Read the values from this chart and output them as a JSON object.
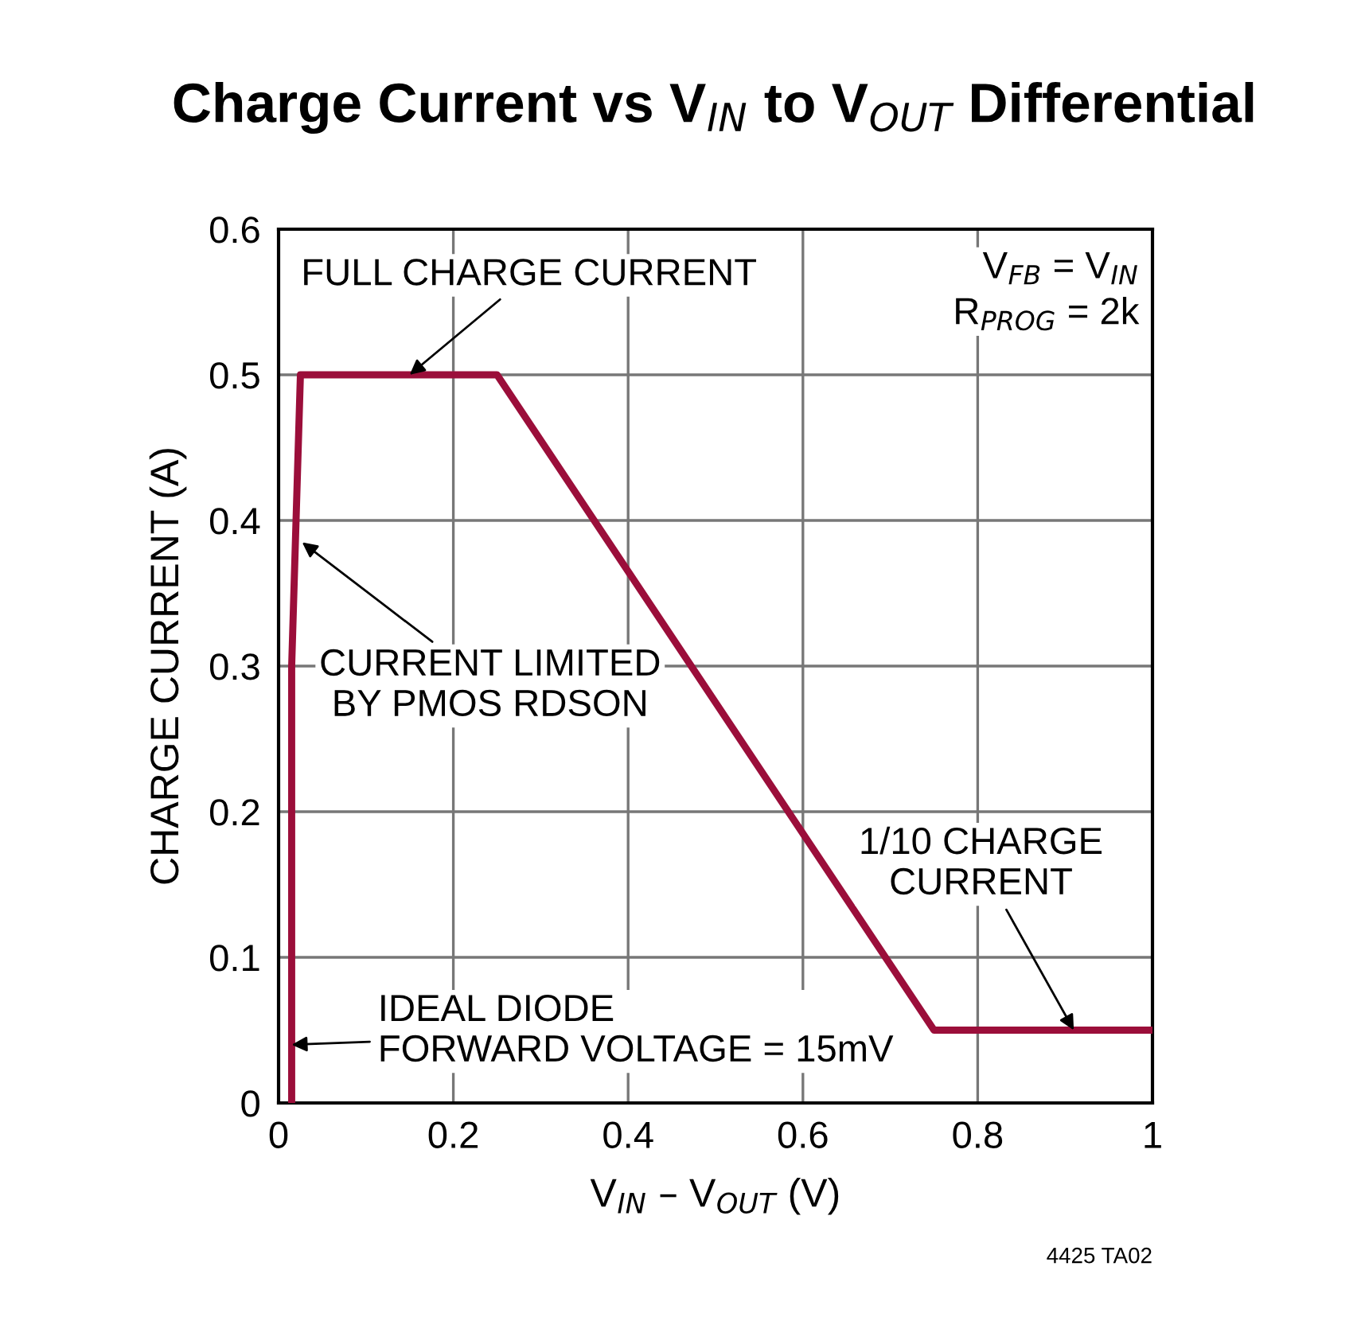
{
  "chart_data": {
    "type": "line",
    "title": "Charge Current vs V$_{IN}$ to V$_{OUT}$ Differential",
    "xlabel": "V$_{IN}$ – V$_{OUT}$ (V)",
    "ylabel": "CHARGE CURRENT (A)",
    "xlim": [
      0,
      1
    ],
    "ylim": [
      0,
      0.6
    ],
    "xticks": [
      0,
      0.2,
      0.4,
      0.6,
      0.8,
      1
    ],
    "yticks": [
      0,
      0.1,
      0.2,
      0.3,
      0.4,
      0.5,
      0.6
    ],
    "grid": true,
    "series": [
      {
        "color": "#9b0e3a",
        "x": [
          0.015,
          0.015,
          0.02,
          0.025,
          0.25,
          0.75,
          1.0
        ],
        "values": [
          0,
          0.3,
          0.4,
          0.5,
          0.5,
          0.05,
          0.05
        ]
      }
    ],
    "annotations": [
      {
        "text": "FULL CHARGE CURRENT",
        "x": 0.15,
        "y": 0.5
      },
      {
        "text": "CURRENT LIMITED\nBY PMOS RDSON",
        "x": 0.027,
        "y": 0.385
      },
      {
        "text": "1/10 CHARGE\nCURRENT",
        "x": 0.91,
        "y": 0.05
      },
      {
        "text": "IDEAL DIODE\nFORWARD VOLTAGE = 15mV",
        "x": 0.015,
        "y": 0.04
      },
      "V$_{FB}$ = V$_{IN}$\nR$_{PROG}$ = 2k",
      "4425 TA02"
    ]
  }
}
